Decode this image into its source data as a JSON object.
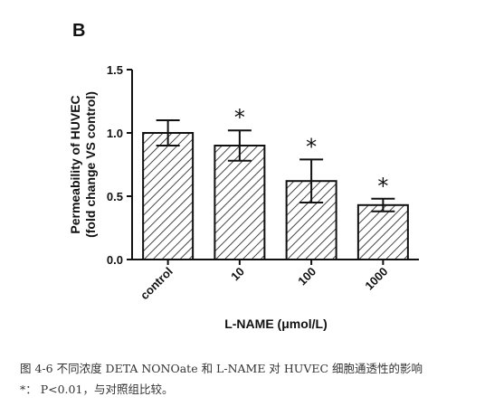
{
  "panel_label": "B",
  "caption": {
    "line1": "图 4-6  不同浓度 DETA NONOate 和 L-NAME  对 HUVEC 细胞通透性的影响",
    "line2": "*： P<0.01，与对照组比较。"
  },
  "chart_data": {
    "type": "bar",
    "categories": [
      "control",
      "10",
      "100",
      "1000"
    ],
    "values": [
      1.0,
      0.9,
      0.62,
      0.43
    ],
    "errors": [
      0.1,
      0.12,
      0.17,
      0.05
    ],
    "significance": [
      "",
      "*",
      "*",
      "*"
    ],
    "ylabel_line1": "Permeability of HUVEC",
    "ylabel_line2": "(fold change VS control)",
    "xlabel": "L-NAME (μmol/L)",
    "ylim": [
      0,
      1.5
    ],
    "yticks": [
      0.0,
      0.5,
      1.0,
      1.5
    ],
    "ytick_labels": [
      "0.0",
      "0.5",
      "1.0",
      "1.5"
    ],
    "grid": false,
    "bar_fill": "diagonal-hatch",
    "colors": {
      "stroke": "#1a1a1a",
      "background": "#ffffff"
    }
  }
}
